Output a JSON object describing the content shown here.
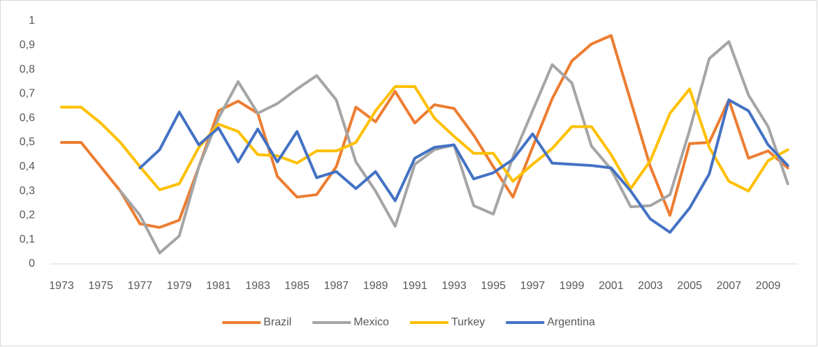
{
  "chart_data": {
    "type": "line",
    "categories": [
      "1973",
      null,
      "1975",
      null,
      "1977",
      null,
      "1979",
      null,
      "1981",
      null,
      "1983",
      null,
      "1985",
      null,
      "1987",
      null,
      "1989",
      null,
      "1991",
      null,
      "1993",
      null,
      "1995",
      null,
      "1997",
      null,
      "1999",
      null,
      "2001",
      null,
      "2003",
      null,
      "2005",
      null,
      "2007",
      null,
      "2009",
      null
    ],
    "series": [
      {
        "name": "Brazil",
        "color": "#ED7D31",
        "values": [
          0.5,
          0.5,
          0.4,
          0.3,
          0.165,
          0.15,
          0.18,
          0.4,
          0.63,
          0.67,
          0.62,
          0.36,
          0.275,
          0.285,
          0.4,
          0.645,
          0.585,
          0.71,
          0.58,
          0.655,
          0.64,
          0.53,
          0.4,
          0.275,
          0.48,
          0.68,
          0.835,
          0.905,
          0.94,
          0.67,
          0.4,
          0.2,
          0.495,
          0.5,
          0.675,
          0.435,
          0.465,
          0.395
        ]
      },
      {
        "name": "Mexico",
        "color": "#A5A5A5",
        "values": [
          null,
          null,
          null,
          0.3,
          0.2,
          0.045,
          0.115,
          0.4,
          0.6,
          0.75,
          0.62,
          0.66,
          0.72,
          0.775,
          0.675,
          0.42,
          0.3,
          0.155,
          0.41,
          0.47,
          0.49,
          0.24,
          0.205,
          0.44,
          0.63,
          0.82,
          0.745,
          0.485,
          0.39,
          0.235,
          0.24,
          0.285,
          0.55,
          0.845,
          0.915,
          0.695,
          0.565,
          0.33
        ]
      },
      {
        "name": "Turkey",
        "color": "#FFC000",
        "values": [
          0.645,
          0.645,
          0.58,
          0.5,
          0.4,
          0.305,
          0.33,
          0.48,
          0.575,
          0.545,
          0.45,
          0.445,
          0.415,
          0.465,
          0.465,
          0.5,
          0.63,
          0.73,
          0.73,
          0.6,
          0.525,
          0.455,
          0.455,
          0.34,
          0.41,
          0.475,
          0.565,
          0.565,
          0.45,
          0.31,
          0.425,
          0.62,
          0.72,
          0.48,
          0.34,
          0.3,
          0.425,
          0.47
        ]
      },
      {
        "name": "Argentina",
        "color": "#4472C4",
        "values": [
          null,
          null,
          null,
          null,
          0.395,
          0.47,
          0.625,
          0.49,
          0.56,
          0.42,
          0.555,
          0.42,
          0.545,
          0.355,
          0.38,
          0.31,
          0.38,
          0.26,
          0.435,
          0.48,
          0.49,
          0.35,
          0.375,
          0.43,
          0.535,
          0.415,
          0.41,
          0.405,
          0.395,
          0.3,
          0.185,
          0.13,
          0.23,
          0.37,
          0.675,
          0.63,
          0.49,
          0.405
        ]
      }
    ],
    "ylim": [
      0,
      1
    ],
    "yticks": [
      0,
      {
        "value": 0.1,
        "label": "0,1"
      },
      {
        "value": 0.2,
        "label": "0,2"
      },
      {
        "value": 0.3,
        "label": "0,3"
      },
      {
        "value": 0.4,
        "label": "0,4"
      },
      {
        "value": 0.5,
        "label": "0,5"
      },
      {
        "value": 0.6,
        "label": "0,6"
      },
      {
        "value": 0.7,
        "label": "0,7"
      },
      {
        "value": 0.8,
        "label": "0,8"
      },
      {
        "value": 0.9,
        "label": "0,9"
      },
      1
    ],
    "grid": false,
    "legend": "bottom"
  }
}
